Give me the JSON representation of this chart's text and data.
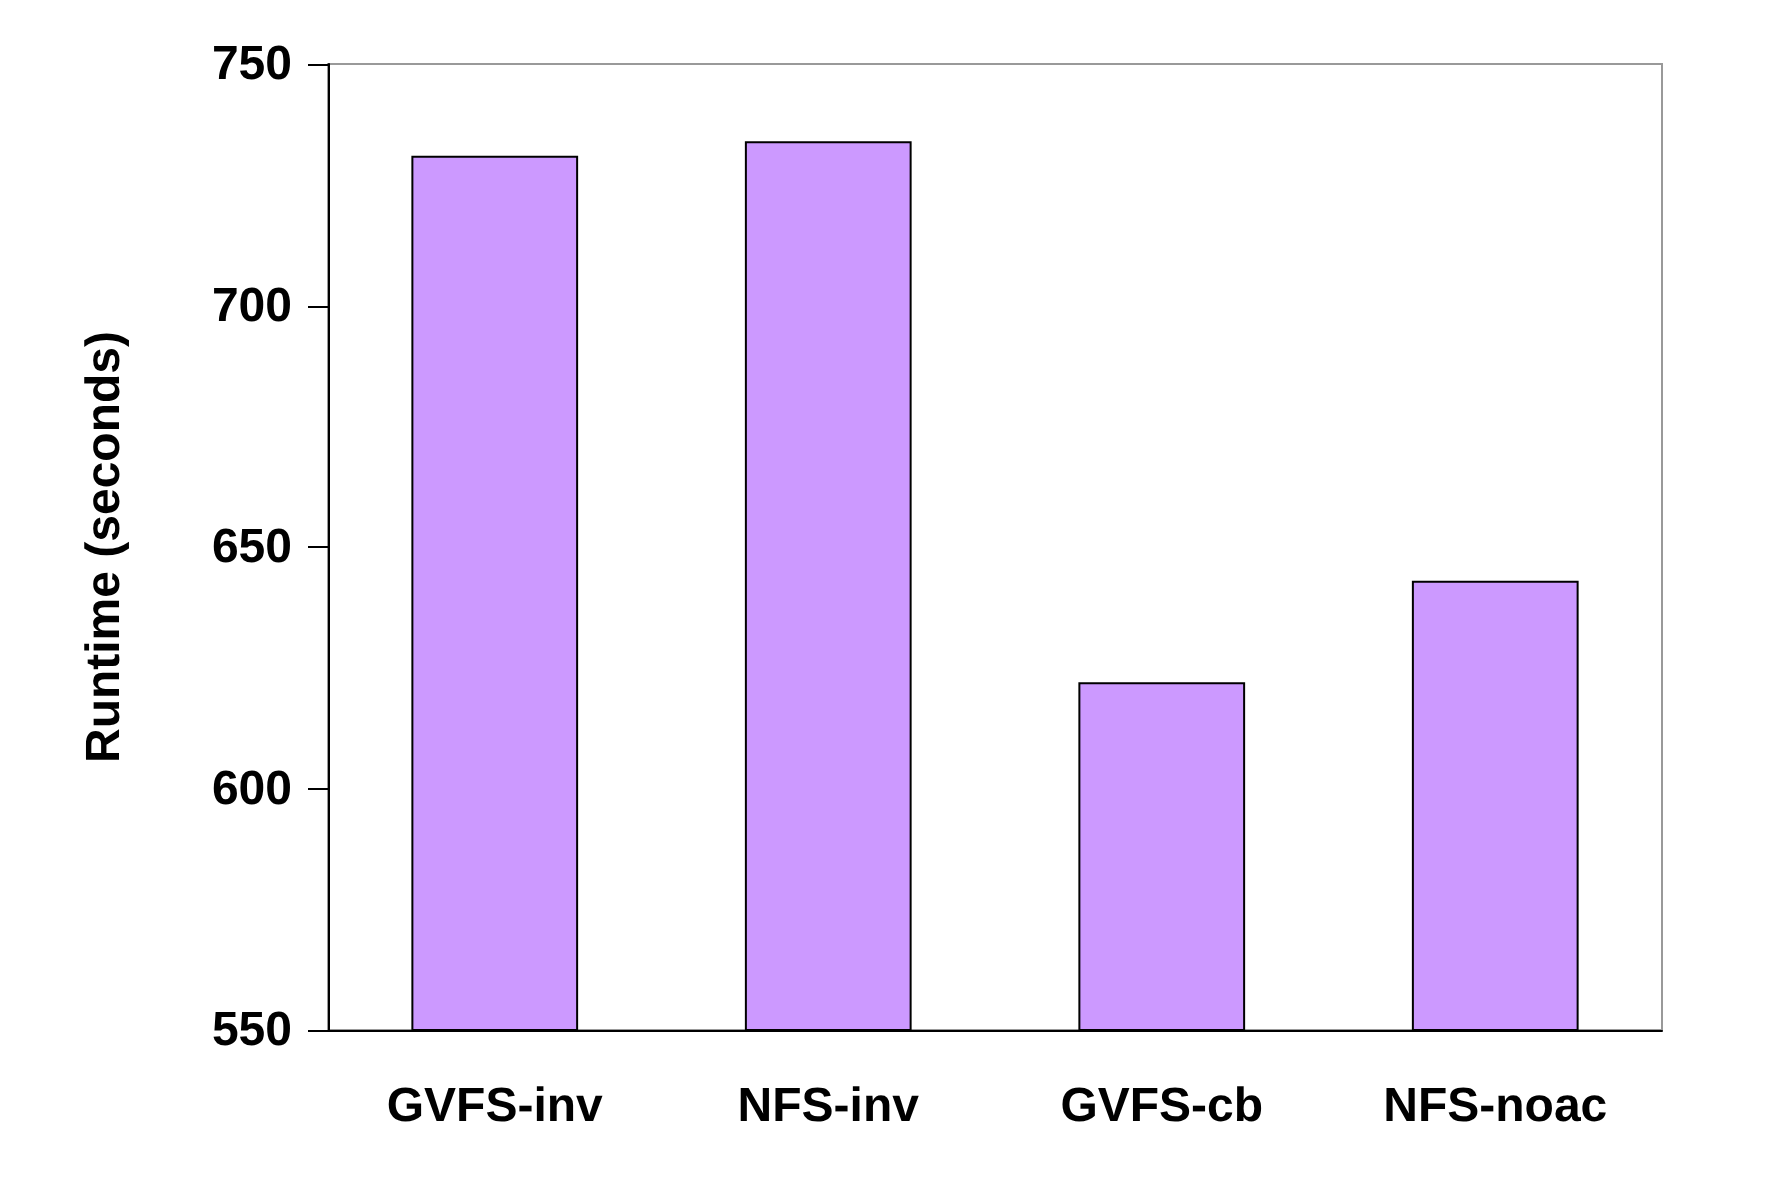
{
  "chart_data": {
    "type": "bar",
    "ylabel": "Runtime (seconds)",
    "categories": [
      "GVFS-inv",
      "NFS-inv",
      "GVFS-cb",
      "NFS-noac"
    ],
    "values": [
      731,
      734,
      622,
      643
    ],
    "color": "#cc99ff",
    "ylim": [
      550,
      750
    ],
    "yticks": [
      550,
      600,
      650,
      700,
      750
    ],
    "grid": false
  }
}
